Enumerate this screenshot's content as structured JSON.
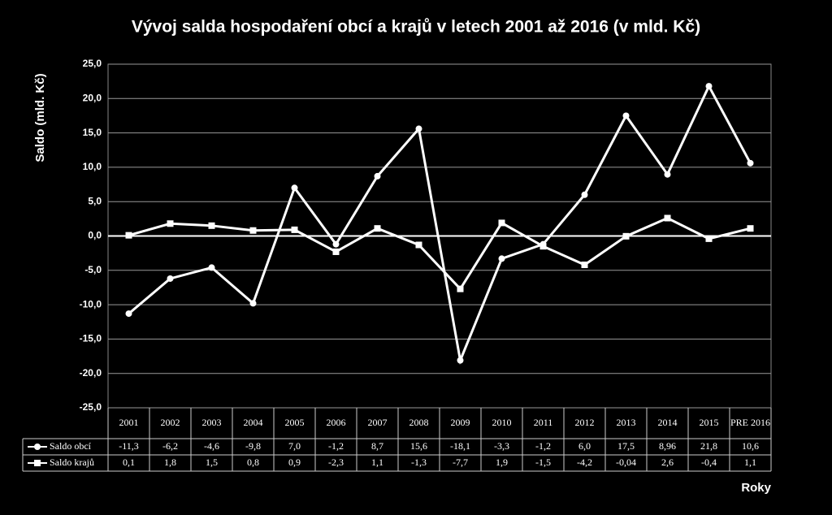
{
  "chart_data": {
    "type": "line",
    "title": "Vývoj salda hospodaření obcí a krajů v letech 2001 až 2016 (v mld. Kč)",
    "y_label": "Saldo (mld. Kč)",
    "x_label": "Roky",
    "categories": [
      "2001",
      "2002",
      "2003",
      "2004",
      "2005",
      "2006",
      "2007",
      "2008",
      "2009",
      "2010",
      "2011",
      "2012",
      "2013",
      "2014",
      "2015",
      "PRE 2016"
    ],
    "series": [
      {
        "name": "Saldo obcí",
        "color": "#ffffff",
        "marker": "circle",
        "values": [
          -11.3,
          -6.2,
          -4.6,
          -9.8,
          7.0,
          -1.2,
          8.7,
          15.6,
          -18.1,
          -3.3,
          -1.2,
          6.0,
          17.5,
          8.96,
          21.8,
          10.6
        ],
        "value_labels": [
          "-11,3",
          "-6,2",
          "-4,6",
          "-9,8",
          "7,0",
          "-1,2",
          "8,7",
          "15,6",
          "-18,1",
          "-3,3",
          "-1,2",
          "6,0",
          "17,5",
          "8,96",
          "21,8",
          "10,6"
        ]
      },
      {
        "name": "Saldo krajů",
        "color": "#ffffff",
        "marker": "square",
        "values": [
          0.1,
          1.8,
          1.5,
          0.8,
          0.9,
          -2.3,
          1.1,
          -1.3,
          -7.7,
          1.9,
          -1.5,
          -4.2,
          -0.04,
          2.6,
          -0.4,
          1.1
        ],
        "value_labels": [
          "0,1",
          "1,8",
          "1,5",
          "0,8",
          "0,9",
          "-2,3",
          "1,1",
          "-1,3",
          "-7,7",
          "1,9",
          "-1,5",
          "-4,2",
          "-0,04",
          "2,6",
          "-0,4",
          "1,1"
        ]
      }
    ],
    "ylim": [
      -25,
      25
    ],
    "yticks": [
      {
        "value": -25,
        "label": "-25,0"
      },
      {
        "value": -20,
        "label": "-20,0"
      },
      {
        "value": -15,
        "label": "-15,0"
      },
      {
        "value": -10,
        "label": "-10,0"
      },
      {
        "value": -5,
        "label": "-5,0"
      },
      {
        "value": 0,
        "label": "0,0"
      },
      {
        "value": 5,
        "label": "5,0"
      },
      {
        "value": 10,
        "label": "10,0"
      },
      {
        "value": 15,
        "label": "15,0"
      },
      {
        "value": 20,
        "label": "20,0"
      },
      {
        "value": 25,
        "label": "25,0"
      }
    ],
    "grid": true
  }
}
